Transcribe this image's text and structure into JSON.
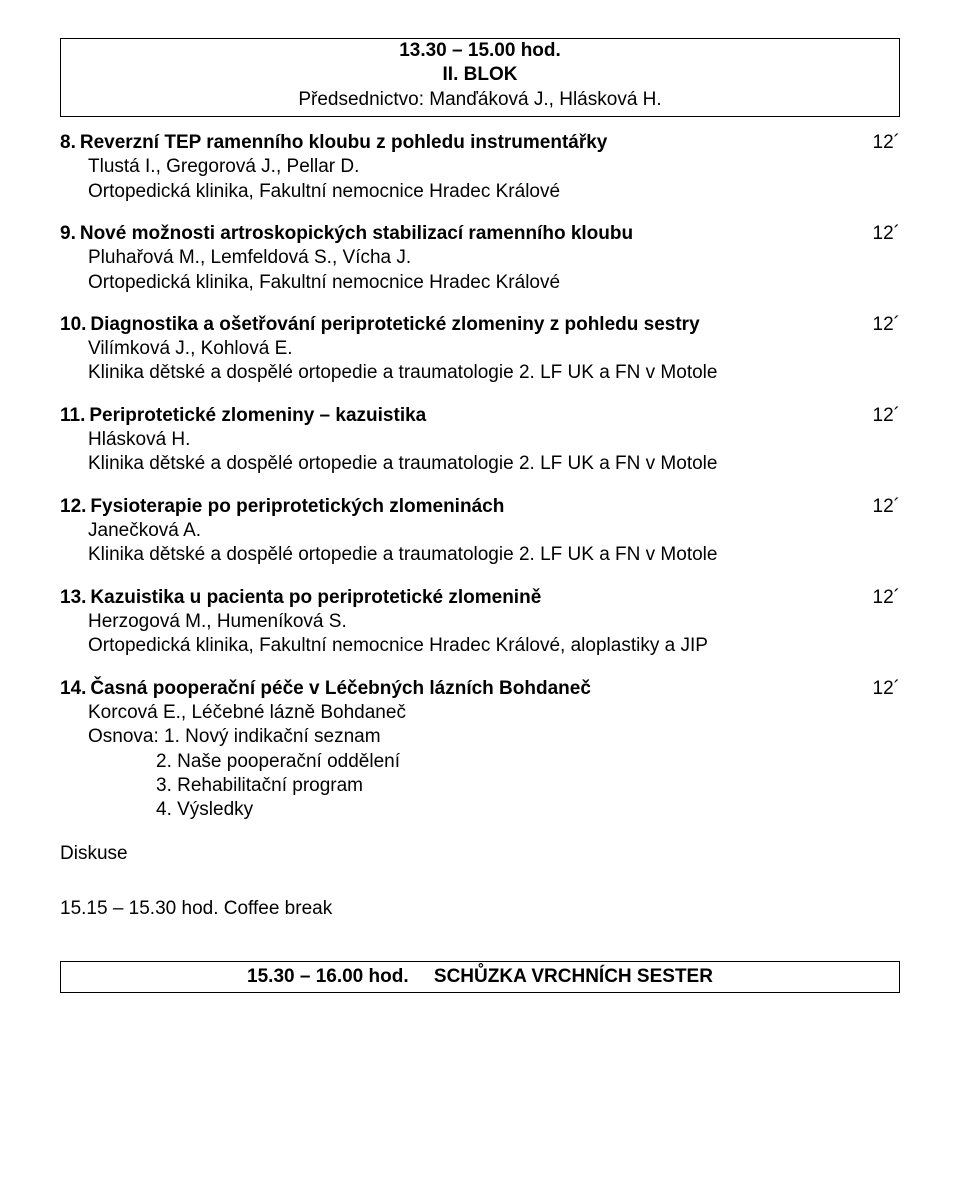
{
  "header": {
    "time": "13.30 – 15.00 hod.",
    "blok": "II. BLOK",
    "chair": "Předsednictvo: Manďáková J., Hlásková H."
  },
  "entries": [
    {
      "num": "8.",
      "title": "Reverzní TEP ramenního kloubu z pohledu instrumentářky",
      "time": "12´",
      "subs": [
        "Tlustá I., Gregorová J., Pellar D.",
        "Ortopedická klinika, Fakultní nemocnice Hradec Králové"
      ]
    },
    {
      "num": "9.",
      "title": "Nové možnosti artroskopických stabilizací ramenního kloubu",
      "time": "12´",
      "subs": [
        "Pluhařová M., Lemfeldová S., Vícha J.",
        "Ortopedická klinika, Fakultní nemocnice Hradec Králové"
      ]
    },
    {
      "num": "10.",
      "title": "Diagnostika a ošetřování periprotetické zlomeniny z pohledu sestry",
      "time": "12´",
      "subs": [
        "Vilímková J., Kohlová E.",
        "Klinika dětské a dospělé ortopedie a traumatologie 2. LF UK a FN v Motole"
      ]
    },
    {
      "num": "11.",
      "title": "Periprotetické zlomeniny – kazuistika",
      "time": "12´",
      "subs": [
        "Hlásková H.",
        "Klinika dětské a dospělé ortopedie a traumatologie 2. LF UK a FN v Motole"
      ]
    },
    {
      "num": "12.",
      "title": "Fysioterapie po periprotetických zlomeninách",
      "time": "12´",
      "subs": [
        "Janečková A.",
        "Klinika dětské a dospělé ortopedie a traumatologie 2. LF UK a FN v Motole"
      ]
    },
    {
      "num": "13.",
      "title": "Kazuistika u pacienta po periprotetické zlomenině",
      "time": "12´",
      "subs": [
        "Herzogová M., Humeníková S.",
        "Ortopedická klinika, Fakultní nemocnice Hradec Králové, aloplastiky a JIP"
      ]
    },
    {
      "num": "14.",
      "title": "Časná pooperační péče v Léčebných lázních Bohdaneč",
      "time": "12´",
      "subs": [
        "Korcová E., Léčebné lázně Bohdaneč"
      ],
      "osnova_label": "Osnova:",
      "osnova": [
        "1. Nový indikační seznam",
        "2. Naše pooperační oddělení",
        "3. Rehabilitační program",
        "4. Výsledky"
      ]
    }
  ],
  "diskuse": "Diskuse",
  "coffee": "15.15 – 15.30 hod.  Coffee break",
  "footer": {
    "time": "15.30 – 16.00 hod.",
    "label": "SCHŮZKA VRCHNÍCH SESTER"
  }
}
